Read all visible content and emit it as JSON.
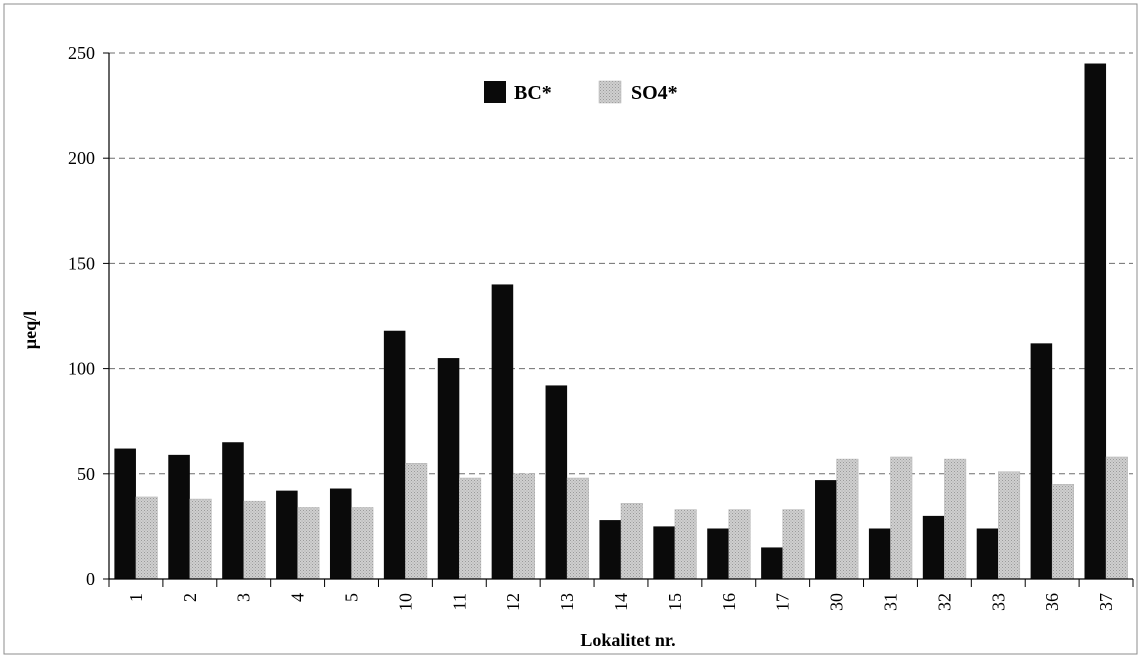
{
  "chart_data": {
    "type": "bar",
    "title": "",
    "xlabel": "Lokalitet nr.",
    "ylabel": "µeq/l",
    "ylim": [
      0,
      250
    ],
    "yticks": [
      0,
      50,
      100,
      150,
      200,
      250
    ],
    "grid": "horizontal dashed",
    "legend_position": "top-center",
    "categories": [
      "1",
      "2",
      "3",
      "4",
      "5",
      "10",
      "11",
      "12",
      "13",
      "14",
      "15",
      "16",
      "17",
      "30",
      "31",
      "32",
      "33",
      "36",
      "37"
    ],
    "series": [
      {
        "name": "BC*",
        "color": "#0a0a0a",
        "values": [
          62,
          59,
          65,
          42,
          43,
          118,
          105,
          140,
          92,
          28,
          25,
          24,
          15,
          47,
          24,
          30,
          24,
          112,
          245
        ]
      },
      {
        "name": "SO4*",
        "color": "#c8c8c8",
        "values": [
          39,
          38,
          37,
          34,
          34,
          55,
          48,
          50,
          48,
          36,
          33,
          33,
          33,
          57,
          58,
          57,
          51,
          45,
          58
        ]
      }
    ]
  }
}
